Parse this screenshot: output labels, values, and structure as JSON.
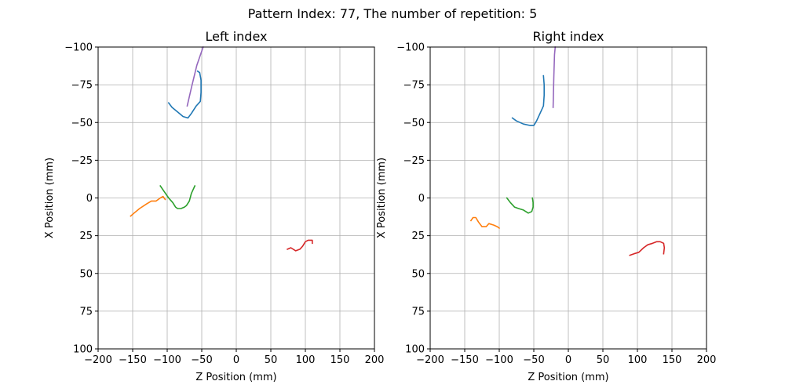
{
  "figure": {
    "title": "Pattern Index: 77, The number of repetition: 5"
  },
  "chart_data": [
    {
      "type": "line",
      "title": "Left index",
      "xlabel": "Z Position (mm)",
      "ylabel": "X Position (mm)",
      "xlim": [
        -200,
        200
      ],
      "ylim": [
        100,
        -100
      ],
      "y_inverted": true,
      "grid": true,
      "xticks": [
        -200,
        -150,
        -100,
        -50,
        0,
        50,
        100,
        150,
        200
      ],
      "yticks": [
        -100,
        -75,
        -50,
        -25,
        0,
        25,
        50,
        75,
        100
      ],
      "series": [
        {
          "color": "#1f77b4",
          "points": [
            [
              -98,
              -63
            ],
            [
              -93,
              -60
            ],
            [
              -85,
              -57
            ],
            [
              -77,
              -54
            ],
            [
              -70,
              -53
            ],
            [
              -65,
              -56
            ],
            [
              -58,
              -61
            ],
            [
              -52,
              -64
            ],
            [
              -51,
              -70
            ],
            [
              -51,
              -78
            ],
            [
              -53,
              -83
            ],
            [
              -56,
              -84
            ]
          ]
        },
        {
          "color": "#ff7f0e",
          "points": [
            [
              -153,
              12
            ],
            [
              -148,
              10
            ],
            [
              -140,
              7
            ],
            [
              -130,
              4
            ],
            [
              -123,
              2
            ],
            [
              -116,
              2
            ],
            [
              -110,
              0
            ],
            [
              -106,
              -1
            ],
            [
              -103,
              1
            ]
          ]
        },
        {
          "color": "#2ca02c",
          "points": [
            [
              -110,
              -8
            ],
            [
              -104,
              -4
            ],
            [
              -98,
              0
            ],
            [
              -92,
              3
            ],
            [
              -88,
              6
            ],
            [
              -85,
              7
            ],
            [
              -80,
              7
            ],
            [
              -75,
              6
            ],
            [
              -72,
              5
            ],
            [
              -68,
              2
            ],
            [
              -65,
              -3
            ],
            [
              -60,
              -8
            ]
          ]
        },
        {
          "color": "#d62728",
          "points": [
            [
              74,
              34
            ],
            [
              79,
              33
            ],
            [
              86,
              35
            ],
            [
              92,
              34
            ],
            [
              96,
              32
            ],
            [
              100,
              29
            ],
            [
              104,
              28
            ],
            [
              108,
              28
            ],
            [
              110,
              28
            ],
            [
              110,
              30
            ]
          ]
        },
        {
          "color": "#9467bd",
          "points": [
            [
              -71,
              -61
            ],
            [
              -65,
              -73
            ],
            [
              -57,
              -88
            ],
            [
              -48,
              -100
            ]
          ]
        }
      ]
    },
    {
      "type": "line",
      "title": "Right index",
      "xlabel": "Z Position (mm)",
      "ylabel": "X Position (mm)",
      "xlim": [
        -200,
        200
      ],
      "ylim": [
        100,
        -100
      ],
      "y_inverted": true,
      "grid": true,
      "xticks": [
        -200,
        -150,
        -100,
        -50,
        0,
        50,
        100,
        150,
        200
      ],
      "yticks": [
        -100,
        -75,
        -50,
        -25,
        0,
        25,
        50,
        75,
        100
      ],
      "series": [
        {
          "color": "#1f77b4",
          "points": [
            [
              -81,
              -53
            ],
            [
              -75,
              -51
            ],
            [
              -65,
              -49
            ],
            [
              -55,
              -48
            ],
            [
              -50,
              -48
            ],
            [
              -46,
              -51
            ],
            [
              -40,
              -57
            ],
            [
              -36,
              -61
            ],
            [
              -35,
              -68
            ],
            [
              -35,
              -75
            ],
            [
              -36,
              -81
            ]
          ]
        },
        {
          "color": "#ff7f0e",
          "points": [
            [
              -141,
              15
            ],
            [
              -138,
              13
            ],
            [
              -134,
              13
            ],
            [
              -130,
              16
            ],
            [
              -125,
              19
            ],
            [
              -119,
              19
            ],
            [
              -115,
              17
            ],
            [
              -108,
              18
            ],
            [
              -103,
              19
            ],
            [
              -100,
              20
            ]
          ]
        },
        {
          "color": "#2ca02c",
          "points": [
            [
              -89,
              0
            ],
            [
              -84,
              3
            ],
            [
              -78,
              6
            ],
            [
              -72,
              7
            ],
            [
              -65,
              8
            ],
            [
              -58,
              10
            ],
            [
              -53,
              9
            ],
            [
              -51,
              6
            ],
            [
              -51,
              3
            ],
            [
              -52,
              0
            ]
          ]
        },
        {
          "color": "#d62728",
          "points": [
            [
              89,
              38
            ],
            [
              95,
              37
            ],
            [
              102,
              36
            ],
            [
              109,
              33
            ],
            [
              115,
              31
            ],
            [
              122,
              30
            ],
            [
              128,
              29
            ],
            [
              133,
              29
            ],
            [
              138,
              30
            ],
            [
              139,
              33
            ],
            [
              138,
              37
            ]
          ]
        },
        {
          "color": "#9467bd",
          "points": [
            [
              -22,
              -60
            ],
            [
              -21,
              -80
            ],
            [
              -20,
              -95
            ],
            [
              -19,
              -100
            ]
          ]
        }
      ]
    }
  ]
}
